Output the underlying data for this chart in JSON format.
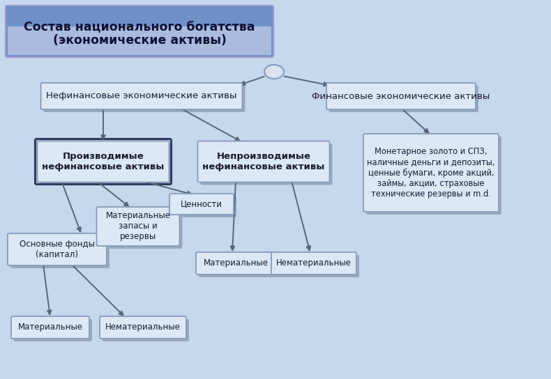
{
  "title_line1": "Состав национального богатства",
  "title_line2": "(экономические активы)",
  "bg_color": "#c5d8ec",
  "box_fill": "#dce9f5",
  "box_edge": "#8899bb",
  "dark_edge": "#2f3b5c",
  "title_fill_top": "#6688cc",
  "title_fill_bot": "#aabbdd",
  "arrow_color": "#556677",
  "nodes": {
    "level1_left": "Нефинансовые экономические активы",
    "level1_right": "Финансовые экономические активы",
    "level2_left": "Производимые\nнефинансовые активы",
    "level2_mid": "Непроизводимые\nнефинансовые активы",
    "level2_right": "Монетарное золото и СПЗ,\nналичные деньги и депозиты,\nценные бумаги, кроме акций,\nзаймы, акции, страховые\nтехнические резервы и m.d.",
    "level3_a": "Основные фонды\n(капитал)",
    "level3_b": "Материальные\nзапасы и\nрезервы",
    "level3_c": "Ценности",
    "level3_d": "Материальные",
    "level3_e": "Нематериальные",
    "level4_a": "Материальные",
    "level4_b": "Нематериальные"
  }
}
